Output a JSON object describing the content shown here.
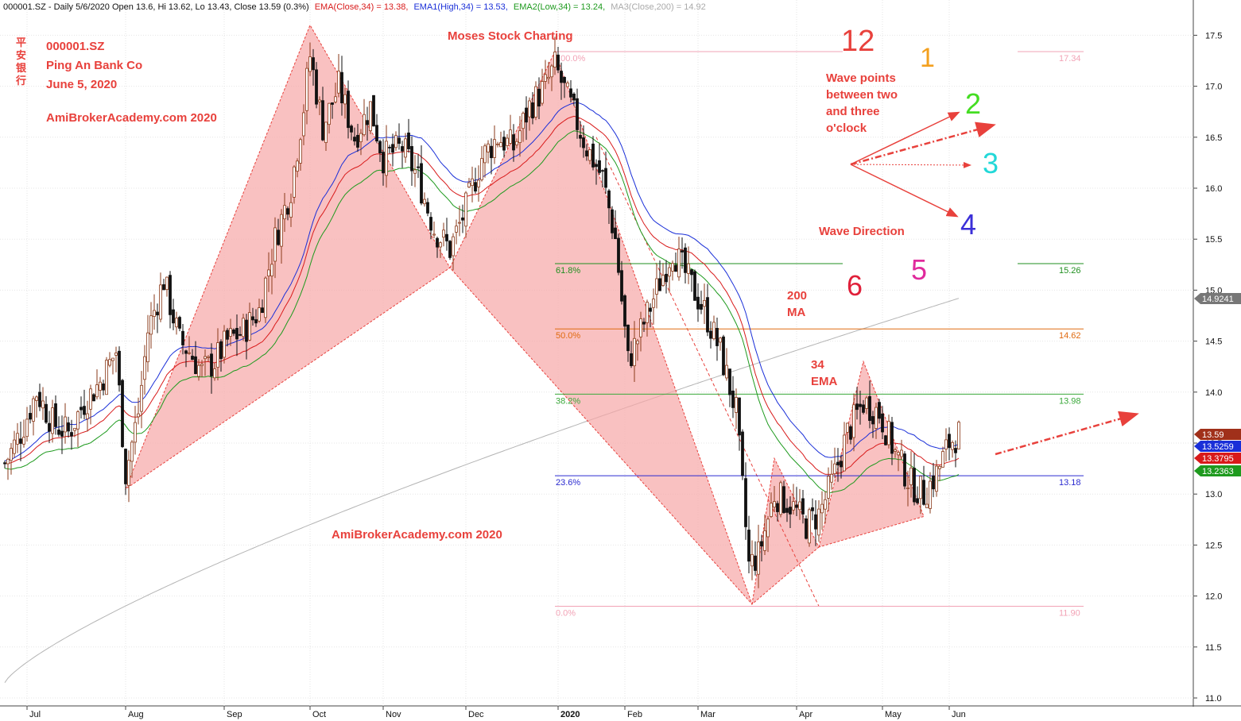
{
  "chart_data": {
    "type": "candlestick",
    "header": {
      "symbol_line": "000001.SZ - Daily 5/6/2020 Open 13.6, Hi 13.62, Lo 13.43, Close 13.59 (0.3%)",
      "ema_close": "EMA(Close,34) = 13.38,",
      "ema_high": "EMA1(High,34) = 13.53,",
      "ema_low": "EMA2(Low,34) = 13.24,",
      "ma200": "MA3(Close,200) = 14.92"
    },
    "titles": {
      "symbol": "000001.SZ",
      "company": "Ping An Bank Co",
      "date": "June 5, 2020",
      "watermark_top": "AmiBrokerAcademy.com 2020",
      "watermark_bottom": "AmiBrokerAcademy.com  2020",
      "center_title": "Moses Stock Charting",
      "chinese_name": "平安银行"
    },
    "annotations": {
      "wave_points": [
        "Wave points",
        "between two",
        "and three",
        "o'clock"
      ],
      "wave_direction": "Wave Direction",
      "ma200_label": [
        "200",
        "MA"
      ],
      "ema34_label": [
        "34",
        "EMA"
      ],
      "clock_numbers": [
        {
          "text": "12",
          "color": "#e8413c"
        },
        {
          "text": "1",
          "color": "#f3a01f"
        },
        {
          "text": "2",
          "color": "#44dd22"
        },
        {
          "text": "3",
          "color": "#22d8d8"
        },
        {
          "text": "4",
          "color": "#3b2fd8"
        },
        {
          "text": "5",
          "color": "#e02a9c"
        },
        {
          "text": "6",
          "color": "#e0203a"
        }
      ]
    },
    "y_axis": {
      "min": 11.0,
      "max": 17.75,
      "ticks": [
        "11.0",
        "11.5",
        "12.0",
        "12.5",
        "13.0",
        "13.5",
        "14.0",
        "14.5",
        "15.0",
        "15.5",
        "16.0",
        "16.5",
        "17.0",
        "17.5"
      ]
    },
    "x_axis": {
      "labels": [
        {
          "text": "Jul",
          "day": 7
        },
        {
          "text": "Aug",
          "day": 38
        },
        {
          "text": "Sep",
          "day": 69
        },
        {
          "text": "Oct",
          "day": 96
        },
        {
          "text": "Nov",
          "day": 119
        },
        {
          "text": "Dec",
          "day": 145
        },
        {
          "text": "2020",
          "day": 174
        },
        {
          "text": "Feb",
          "day": 195
        },
        {
          "text": "Mar",
          "day": 218
        },
        {
          "text": "Apr",
          "day": 249
        },
        {
          "text": "May",
          "day": 276
        },
        {
          "text": "Jun",
          "day": 297
        }
      ]
    },
    "fibonacci": [
      {
        "label": "100.0%",
        "value": 17.34,
        "value_label": "17.34",
        "color": "#f2a3b6"
      },
      {
        "label": "61.8%",
        "value": 15.26,
        "value_label": "15.26",
        "color": "#1f8f1f"
      },
      {
        "label": "50.0%",
        "value": 14.62,
        "value_label": "14.62",
        "color": "#e06a10"
      },
      {
        "label": "38.2%",
        "value": 13.98,
        "value_label": "13.98",
        "color": "#3aa83a"
      },
      {
        "label": "23.6%",
        "value": 13.18,
        "value_label": "13.18",
        "color": "#2a2ad0"
      },
      {
        "label": "0.0%",
        "value": 11.9,
        "value_label": "11.90",
        "color": "#f2a3b6"
      }
    ],
    "price_tags": [
      {
        "text": "13.59",
        "value": 13.59,
        "color": "#a0301a"
      },
      {
        "text": "14.9241",
        "value": 14.9241,
        "color": "#777777"
      },
      {
        "text": "13.5259",
        "value": 13.5259,
        "color": "#1a2fd8"
      },
      {
        "text": "13.3795",
        "value": 13.3795,
        "color": "#d81a1a"
      },
      {
        "text": "13.2363",
        "value": 13.2363,
        "color": "#1e9a1e"
      }
    ],
    "harmonic_patterns": [
      {
        "points": [
          [
            38,
            13.05
          ],
          [
            96,
            17.6
          ],
          [
            140,
            15.22
          ],
          [
            38,
            13.05
          ]
        ]
      },
      {
        "points": [
          [
            140,
            15.22
          ],
          [
            173,
            17.34
          ],
          [
            235,
            11.92
          ],
          [
            140,
            15.22
          ]
        ]
      },
      {
        "points": [
          [
            235,
            11.92
          ],
          [
            242,
            13.35
          ],
          [
            256,
            12.48
          ],
          [
            235,
            11.92
          ]
        ]
      },
      {
        "points": [
          [
            256,
            12.48
          ],
          [
            270,
            14.3
          ],
          [
            289,
            12.78
          ],
          [
            256,
            12.48
          ]
        ]
      }
    ],
    "close_path": [
      [
        0,
        13.3
      ],
      [
        5,
        13.6
      ],
      [
        10,
        14.0
      ],
      [
        15,
        13.7
      ],
      [
        20,
        13.6
      ],
      [
        25,
        13.9
      ],
      [
        30,
        14.1
      ],
      [
        35,
        14.4
      ],
      [
        38,
        13.2
      ],
      [
        42,
        13.8
      ],
      [
        45,
        14.6
      ],
      [
        50,
        15.1
      ],
      [
        55,
        14.5
      ],
      [
        58,
        14.4
      ],
      [
        62,
        14.2
      ],
      [
        66,
        14.3
      ],
      [
        70,
        14.5
      ],
      [
        75,
        14.6
      ],
      [
        80,
        14.8
      ],
      [
        85,
        15.5
      ],
      [
        90,
        16.0
      ],
      [
        94,
        16.8
      ],
      [
        96,
        17.3
      ],
      [
        100,
        16.6
      ],
      [
        105,
        17.0
      ],
      [
        110,
        16.5
      ],
      [
        115,
        16.8
      ],
      [
        119,
        16.3
      ],
      [
        125,
        16.4
      ],
      [
        130,
        16.1
      ],
      [
        135,
        15.6
      ],
      [
        140,
        15.4
      ],
      [
        145,
        15.8
      ],
      [
        150,
        16.3
      ],
      [
        155,
        16.5
      ],
      [
        160,
        16.4
      ],
      [
        165,
        16.8
      ],
      [
        170,
        17.0
      ],
      [
        173,
        17.2
      ],
      [
        178,
        16.8
      ],
      [
        183,
        16.4
      ],
      [
        188,
        16.1
      ],
      [
        192,
        15.5
      ],
      [
        196,
        14.3
      ],
      [
        200,
        14.6
      ],
      [
        205,
        15.0
      ],
      [
        210,
        15.4
      ],
      [
        215,
        15.1
      ],
      [
        220,
        14.8
      ],
      [
        225,
        14.4
      ],
      [
        230,
        13.8
      ],
      [
        234,
        12.3
      ],
      [
        237,
        12.4
      ],
      [
        242,
        13.0
      ],
      [
        247,
        12.9
      ],
      [
        252,
        12.7
      ],
      [
        256,
        12.8
      ],
      [
        260,
        13.1
      ],
      [
        265,
        13.6
      ],
      [
        270,
        13.9
      ],
      [
        275,
        13.8
      ],
      [
        280,
        13.4
      ],
      [
        285,
        13.1
      ],
      [
        289,
        13.0
      ],
      [
        293,
        13.2
      ],
      [
        297,
        13.5
      ],
      [
        300,
        13.59
      ]
    ],
    "ma_lines": {
      "ema_high_color": "#1a2fd8",
      "ema_close_color": "#d81a1a",
      "ema_low_color": "#1e9a1e",
      "ma200_color": "#b4b4b4"
    }
  }
}
